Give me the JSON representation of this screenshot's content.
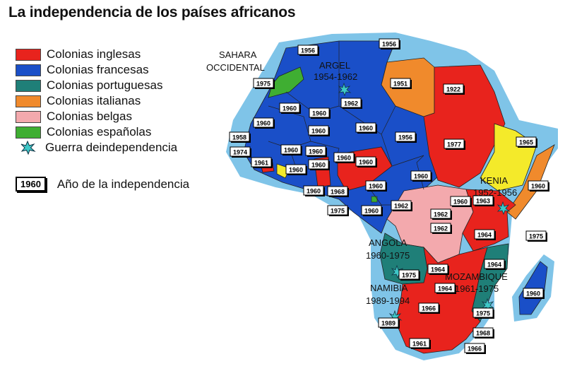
{
  "title": "La independencia de los países africanos",
  "legend": [
    {
      "label": "Colonias inglesas",
      "color": "#e8231d"
    },
    {
      "label": "Colonias francesas",
      "color": "#1a4fc8"
    },
    {
      "label": "Colonias portuguesas",
      "color": "#1f7f78"
    },
    {
      "label": "Colonias italianas",
      "color": "#f08a2c"
    },
    {
      "label": "Colonias belgas",
      "color": "#f3a9ad"
    },
    {
      "label": "Colonias españolas",
      "color": "#3fae32"
    }
  ],
  "war_legend": {
    "label": "Guerra deindependencia",
    "icon": "star-burst-icon",
    "color": "#3ec8c8"
  },
  "year_key": {
    "box": "1960",
    "label": "Año de la independencia"
  },
  "map": {
    "ocean_color": "#7fc4e8",
    "annotations": [
      {
        "id": "sahara",
        "lines": [
          "SAHARA",
          "OCCIDENTAL"
        ]
      },
      {
        "id": "argel",
        "lines": [
          "ARGEL",
          "1954-1962"
        ]
      },
      {
        "id": "kenia",
        "lines": [
          "KENIA",
          "1952-1956"
        ]
      },
      {
        "id": "angola",
        "lines": [
          "ANGOLA",
          "1960-1975"
        ]
      },
      {
        "id": "mozambique",
        "lines": [
          "MOZAMBIQUE",
          "1961-1975"
        ]
      },
      {
        "id": "namibia",
        "lines": [
          "NAMIBIA",
          "1989-1994"
        ]
      }
    ],
    "year_labels": [
      "1956",
      "1956",
      "1975",
      "1951",
      "1922",
      "1960",
      "1960",
      "1962",
      "1960",
      "1960",
      "1960",
      "1956",
      "1977",
      "1965",
      "1958",
      "1960",
      "1974",
      "1961",
      "1960",
      "1960",
      "1960",
      "1960",
      "1960",
      "1960",
      "1968",
      "1960",
      "1960",
      "1975",
      "1960",
      "1962",
      "1962",
      "1963",
      "1960",
      "1962",
      "1960",
      "1964",
      "1975",
      "1964",
      "1964",
      "1975",
      "1964",
      "1966",
      "1975",
      "1989",
      "1968",
      "1961",
      "1966",
      "1960"
    ]
  }
}
